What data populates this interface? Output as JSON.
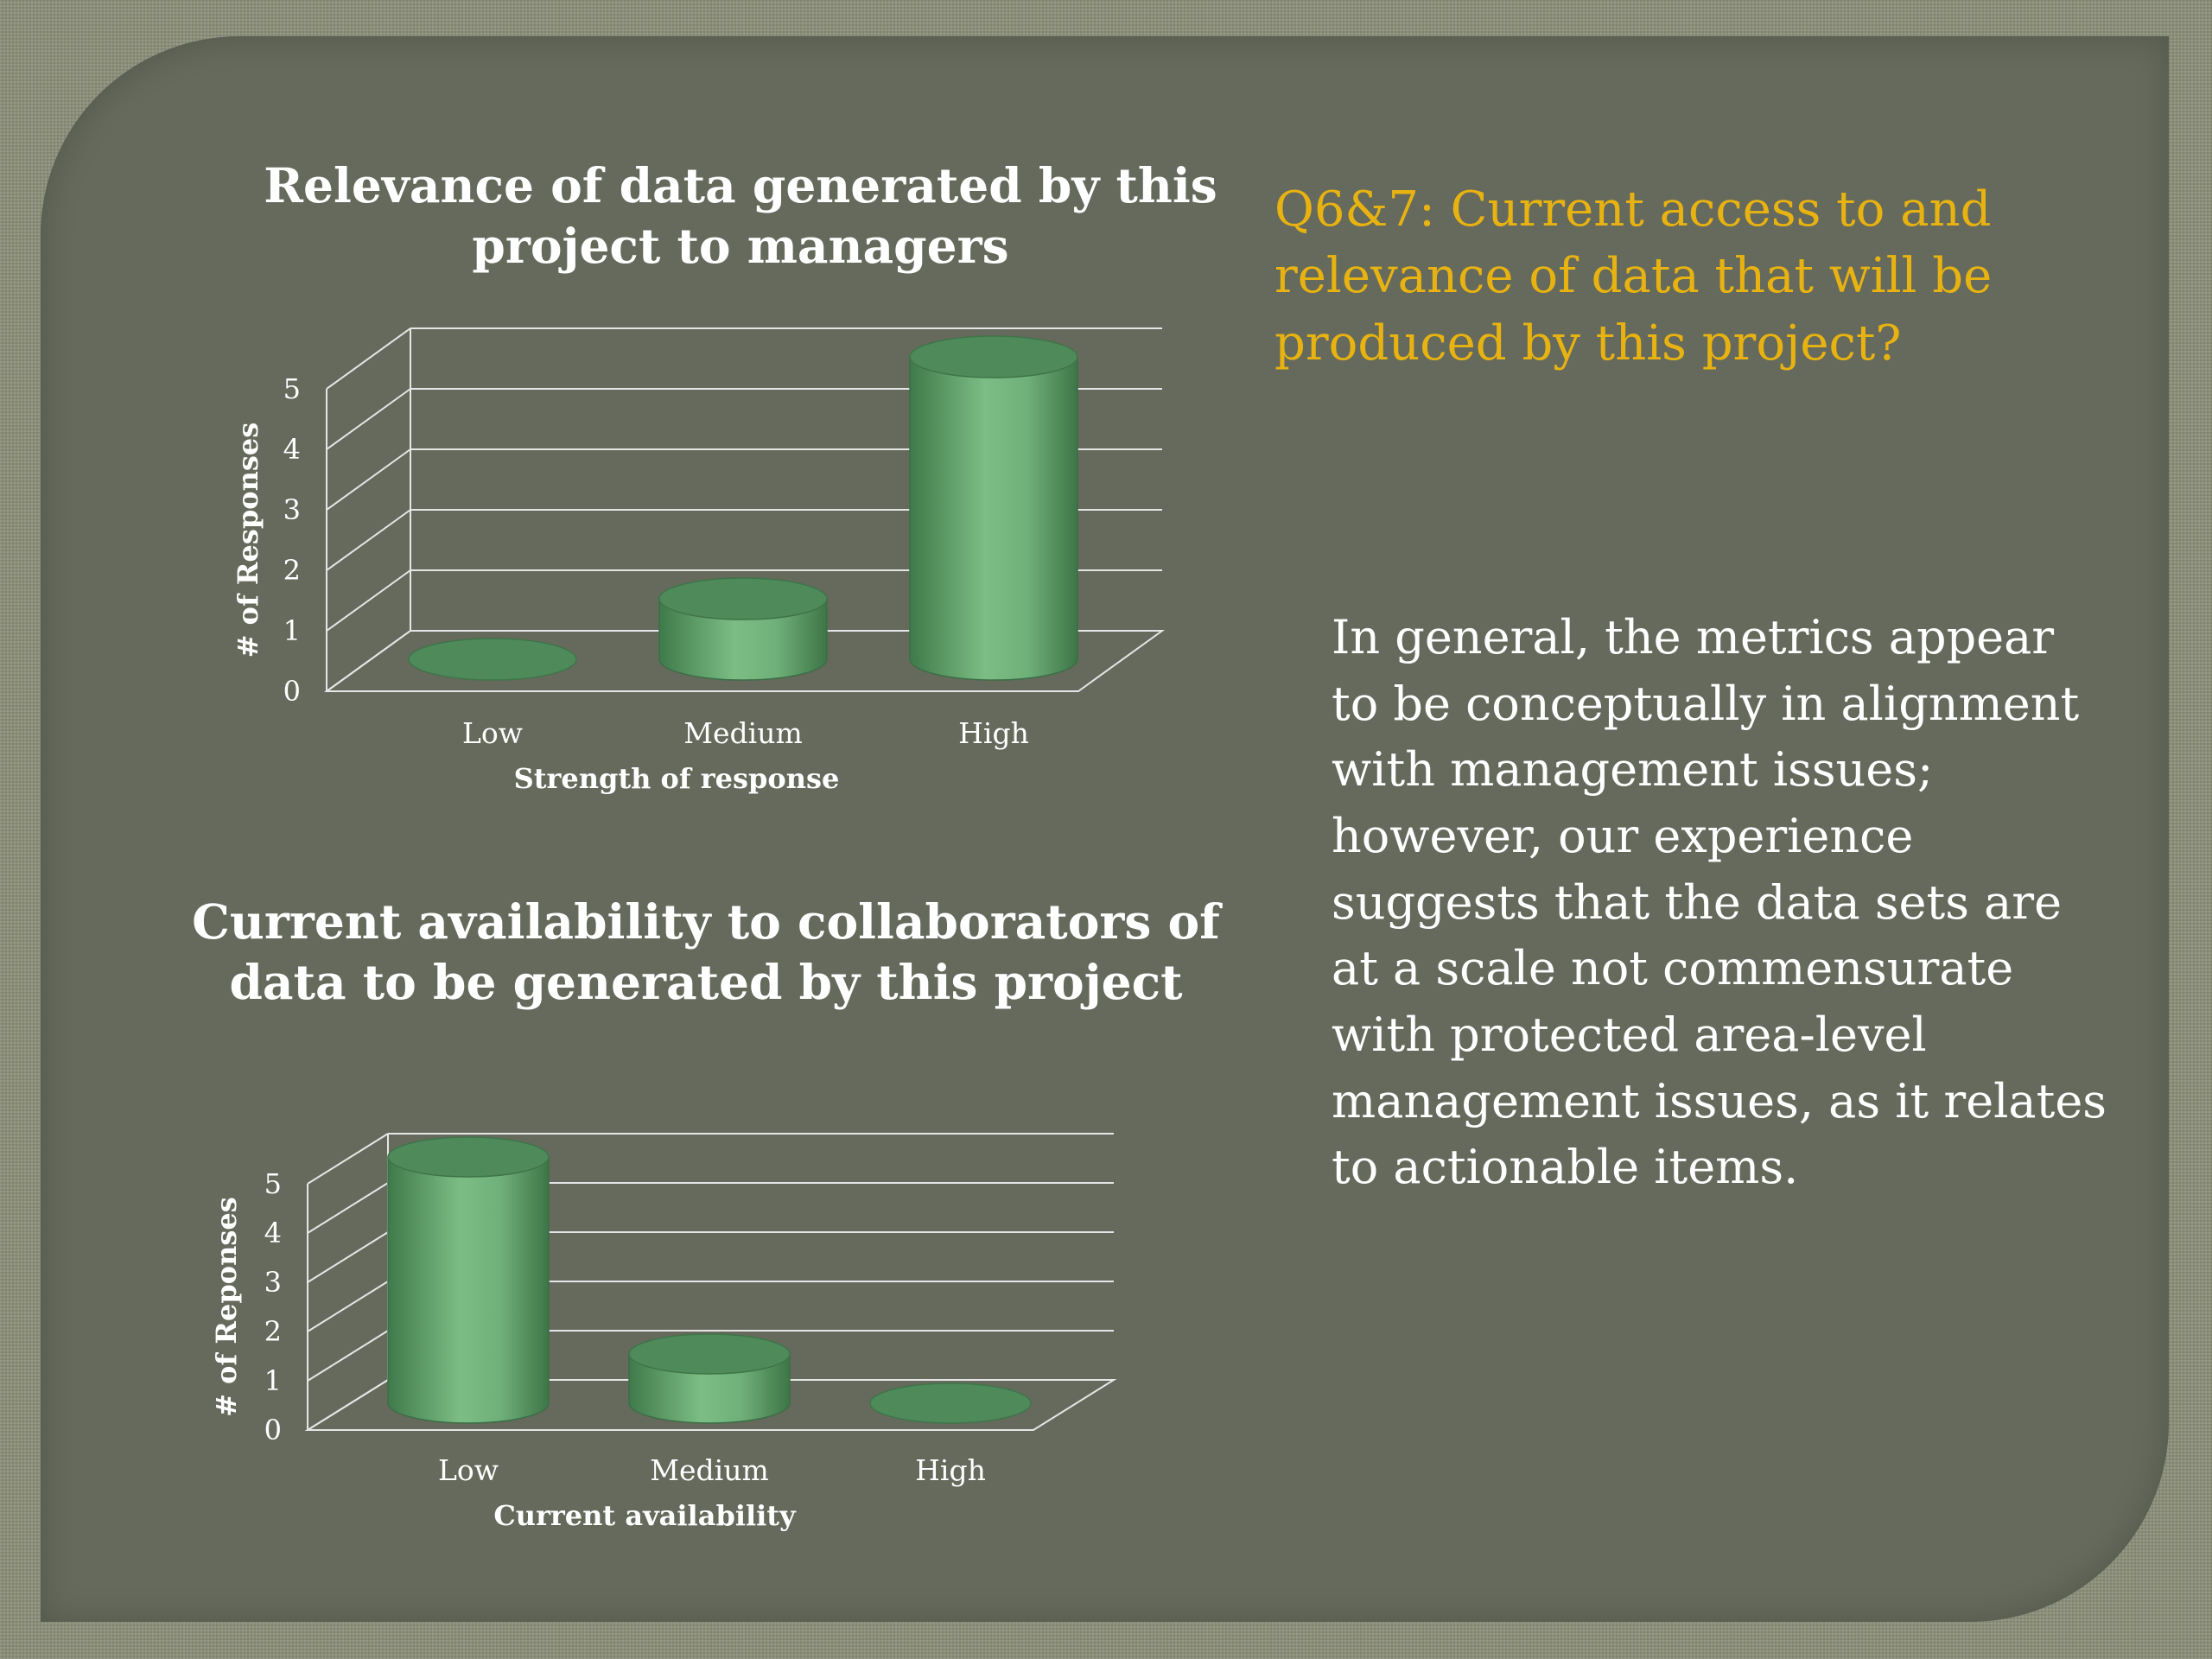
{
  "slide": {
    "question": "Q6&7: Current access to and relevance of data that will be produced by this project?",
    "body": "In general, the metrics appear to be conceptually in alignment with management issues; however, our experience suggests that the data sets are at a scale not commensurate with protected area-level management issues, as it relates to actionable items."
  },
  "colors": {
    "background": "#8a8e78",
    "panel": "#656a5c",
    "bar": "#6fb07a",
    "question": "#e8b311",
    "text": "#ffffff"
  },
  "chart_data": [
    {
      "type": "bar",
      "title": "Relevance of data generated by this project to managers",
      "categories": [
        "Low",
        "Medium",
        "High"
      ],
      "values": [
        0,
        1,
        5
      ],
      "xlabel": "Strength of response",
      "ylabel": "# of Responses",
      "ylim": [
        0,
        5
      ],
      "yticks": [
        0,
        1,
        2,
        3,
        4,
        5
      ],
      "grid": true,
      "style": "3d-cylinder"
    },
    {
      "type": "bar",
      "title": "Current availability to collaborators of data to be generated by this project",
      "categories": [
        "Low",
        "Medium",
        "High"
      ],
      "values": [
        5,
        1,
        0
      ],
      "xlabel": "Current availability",
      "ylabel": "# of Reponses",
      "ylim": [
        0,
        5
      ],
      "yticks": [
        0,
        1,
        2,
        3,
        4,
        5
      ],
      "grid": true,
      "style": "3d-cylinder"
    }
  ]
}
